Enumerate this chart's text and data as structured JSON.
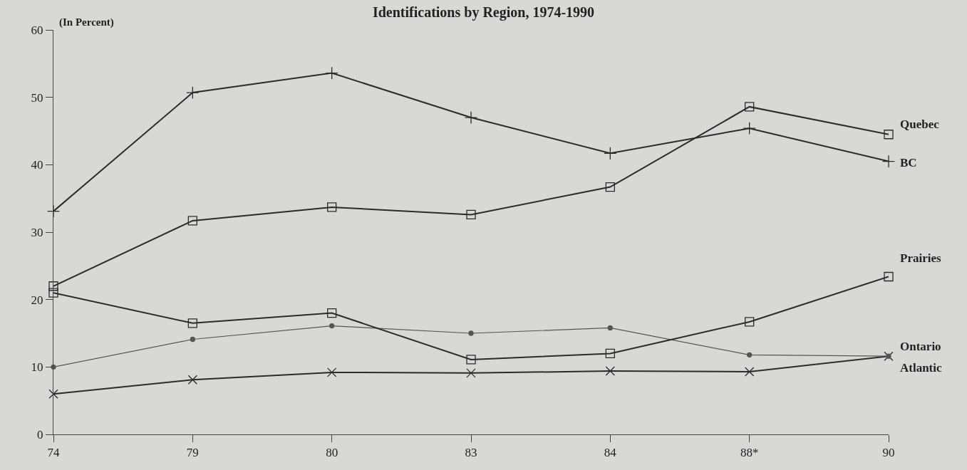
{
  "chart_data": {
    "type": "line",
    "title": "Identifications by Region, 1974-1990",
    "ylabel": "(In Percent)",
    "categories": [
      "74",
      "79",
      "80",
      "83",
      "84",
      "88*",
      "90"
    ],
    "series": [
      {
        "name": "Quebec",
        "color": "#2b2b2b",
        "marker": "square",
        "values": [
          22.0,
          31.7,
          33.7,
          32.6,
          36.7,
          48.6,
          44.5
        ]
      },
      {
        "name": "BC",
        "color": "#2b2b2b",
        "marker": "cross",
        "values": [
          33.1,
          50.7,
          53.6,
          47.0,
          41.7,
          45.4,
          40.5
        ]
      },
      {
        "name": "Prairies",
        "color": "#2b2b2b",
        "marker": "square",
        "values": [
          21.0,
          16.5,
          18.0,
          11.1,
          12.0,
          16.7,
          23.4
        ]
      },
      {
        "name": "Ontario",
        "color": "#555555",
        "marker": "circle",
        "values": [
          10.0,
          14.1,
          16.1,
          15.0,
          15.8,
          11.8,
          11.6
        ]
      },
      {
        "name": "Atlantic",
        "color": "#2b2b2b",
        "marker": "x",
        "values": [
          6.0,
          8.1,
          9.2,
          9.1,
          9.4,
          9.3,
          11.6
        ]
      }
    ],
    "ylim": [
      0,
      60
    ],
    "yticks": [
      0,
      10,
      20,
      30,
      40,
      50,
      60
    ],
    "grid": false,
    "legend": false,
    "line_style": "solid"
  }
}
